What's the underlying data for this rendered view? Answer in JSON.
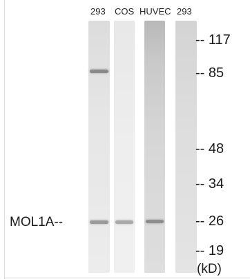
{
  "lanes": [
    {
      "label": "293"
    },
    {
      "label": "COS"
    },
    {
      "label": "HUVEC"
    },
    {
      "label": "293"
    }
  ],
  "markers": [
    {
      "label": "-- 117"
    },
    {
      "label": "-- 85"
    },
    {
      "label": "-- 48"
    },
    {
      "label": "-- 34"
    },
    {
      "label": "-- 26"
    },
    {
      "label": "-- 19"
    }
  ],
  "protein_label": "MOL1A--",
  "unit_label": "(kD)"
}
